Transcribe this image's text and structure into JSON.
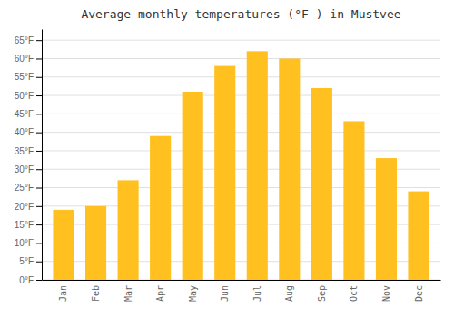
{
  "chart_data": {
    "type": "bar",
    "title": "Average monthly temperatures (°F ) in Mustvee",
    "categories": [
      "Jan",
      "Feb",
      "Mar",
      "Apr",
      "May",
      "Jun",
      "Jul",
      "Aug",
      "Sep",
      "Oct",
      "Nov",
      "Dec"
    ],
    "values": [
      19,
      20,
      27,
      39,
      51,
      58,
      62,
      60,
      52,
      43,
      33,
      24
    ],
    "color": "#FFC020",
    "ylim": [
      0,
      68
    ],
    "yticks": [
      {
        "value": 0,
        "label": "0°F"
      },
      {
        "value": 5,
        "label": "5°F"
      },
      {
        "value": 10,
        "label": "10°F"
      },
      {
        "value": 15,
        "label": "15°F"
      },
      {
        "value": 20,
        "label": "20°F"
      },
      {
        "value": 25,
        "label": "25°F"
      },
      {
        "value": 30,
        "label": "30°F"
      },
      {
        "value": 35,
        "label": "35°F"
      },
      {
        "value": 40,
        "label": "40°F"
      },
      {
        "value": 45,
        "label": "45°F"
      },
      {
        "value": 50,
        "label": "50°F"
      },
      {
        "value": 55,
        "label": "55°F"
      },
      {
        "value": 60,
        "label": "60°F"
      },
      {
        "value": 65,
        "label": "65°F"
      }
    ],
    "grid": true
  }
}
